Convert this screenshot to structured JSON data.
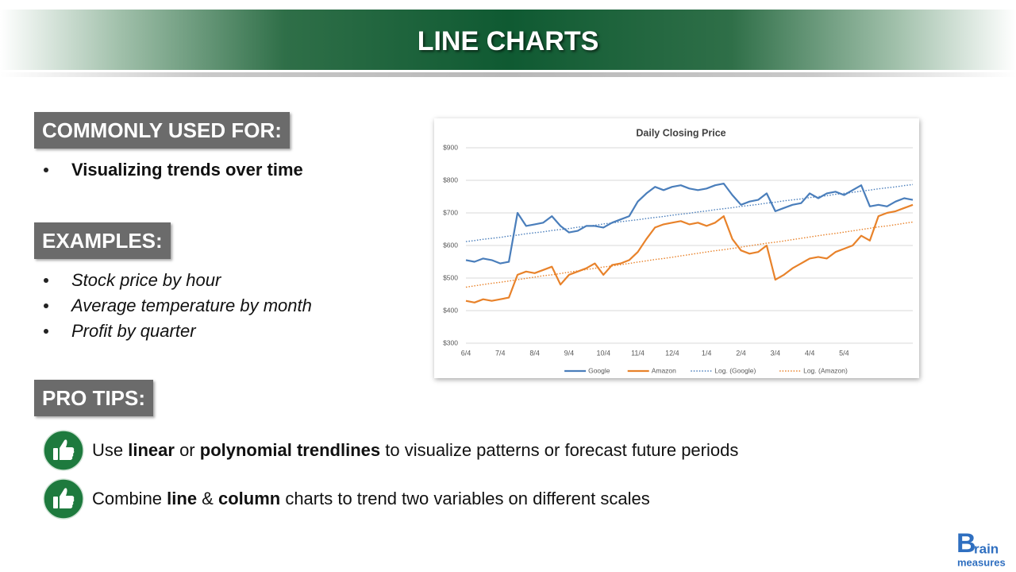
{
  "header": {
    "title": "LINE CHARTS"
  },
  "sections": [
    {
      "heading": "COMMONLY USED FOR:",
      "items": [
        "Visualizing trends over time"
      ]
    },
    {
      "heading": "EXAMPLES:",
      "items": [
        "Stock price by hour",
        "Average temperature by month",
        "Profit by quarter"
      ]
    }
  ],
  "pro_tips": {
    "heading": "PRO TIPS:",
    "tips": [
      [
        "Use ",
        "linear",
        " or ",
        "polynomial trendlines",
        " to visualize patterns or forecast future periods"
      ],
      [
        "Combine ",
        "line",
        " & ",
        "column",
        " charts to trend two variables on different scales"
      ]
    ]
  },
  "chart_data": {
    "type": "line",
    "title": "Daily Closing Price",
    "categories": [
      "6/4",
      null,
      null,
      null,
      "7/4",
      null,
      null,
      null,
      "8/4",
      null,
      null,
      null,
      "9/4",
      null,
      null,
      null,
      "10/4",
      null,
      null,
      null,
      "11/4",
      null,
      null,
      null,
      "12/4",
      null,
      null,
      null,
      "1/4",
      null,
      null,
      null,
      "2/4",
      null,
      null,
      null,
      "3/4",
      null,
      null,
      null,
      "4/4",
      null,
      null,
      null,
      "5/4",
      null,
      null,
      null,
      null,
      null,
      null,
      null,
      null
    ],
    "ylim": [
      300,
      900
    ],
    "yticks": [
      {
        "value": 300,
        "label": "$300"
      },
      {
        "value": 400,
        "label": "$400"
      },
      {
        "value": 500,
        "label": "$500"
      },
      {
        "value": 600,
        "label": "$600"
      },
      {
        "value": 700,
        "label": "$700"
      },
      {
        "value": 800,
        "label": "$800"
      },
      {
        "value": 900,
        "label": "$900"
      }
    ],
    "grid": true,
    "legend": "bottom",
    "series": [
      {
        "name": "Google",
        "color": "#4a7ebb",
        "style": "solid",
        "values": [
          555,
          550,
          560,
          555,
          545,
          550,
          700,
          660,
          665,
          670,
          690,
          660,
          640,
          645,
          660,
          660,
          655,
          670,
          680,
          690,
          735,
          760,
          780,
          770,
          780,
          785,
          775,
          770,
          775,
          785,
          790,
          755,
          725,
          735,
          740,
          760,
          705,
          715,
          725,
          730,
          760,
          745,
          760,
          765,
          755,
          770,
          785,
          720,
          725,
          720,
          735,
          745,
          740
        ]
      },
      {
        "name": "Amazon",
        "color": "#e8822a",
        "style": "solid",
        "values": [
          430,
          425,
          435,
          430,
          435,
          440,
          510,
          520,
          515,
          525,
          535,
          480,
          510,
          520,
          530,
          545,
          510,
          540,
          545,
          555,
          580,
          620,
          655,
          665,
          670,
          675,
          665,
          670,
          660,
          670,
          690,
          620,
          585,
          575,
          580,
          600,
          495,
          510,
          530,
          545,
          560,
          565,
          560,
          580,
          590,
          600,
          630,
          615,
          690,
          700,
          705,
          715,
          725
        ]
      },
      {
        "name": "Log. (Google)",
        "color": "#4a7ebb",
        "style": "dotted",
        "values": [
          612,
          615,
          619,
          622,
          625,
          629,
          632,
          636,
          639,
          642,
          646,
          649,
          652,
          656,
          659,
          662,
          666,
          669,
          673,
          676,
          679,
          683,
          686,
          689,
          693,
          696,
          699,
          703,
          706,
          710,
          713,
          716,
          720,
          723,
          726,
          730,
          733,
          737,
          740,
          743,
          747,
          750,
          753,
          757,
          760,
          763,
          767,
          770,
          774,
          777,
          780,
          784,
          787
        ]
      },
      {
        "name": "Log. (Amazon)",
        "color": "#e8822a",
        "style": "dotted",
        "values": [
          472,
          476,
          480,
          484,
          487,
          491,
          495,
          499,
          503,
          507,
          510,
          514,
          518,
          522,
          526,
          530,
          534,
          537,
          541,
          545,
          549,
          553,
          557,
          560,
          564,
          568,
          572,
          576,
          580,
          584,
          587,
          591,
          595,
          599,
          603,
          607,
          610,
          614,
          618,
          622,
          626,
          630,
          634,
          637,
          641,
          645,
          649,
          653,
          657,
          660,
          664,
          668,
          672
        ]
      }
    ]
  },
  "logo": {
    "letter": "B",
    "rest": "rain",
    "tagline": "measures"
  }
}
